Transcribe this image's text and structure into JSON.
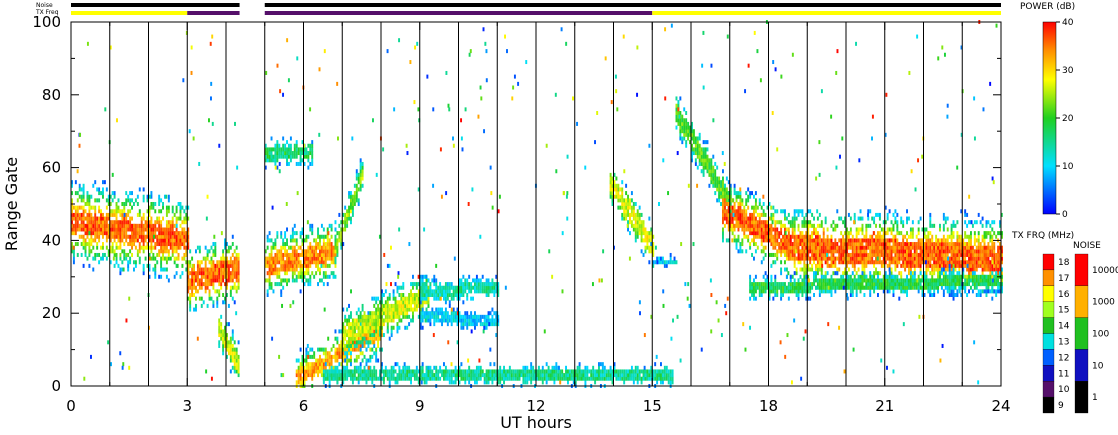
{
  "chart_data": {
    "type": "heatmap",
    "xlabel": "UT hours",
    "ylabel": "Range Gate",
    "xlim": [
      0,
      24
    ],
    "ylim": [
      0,
      100
    ],
    "x_ticks": [
      "0",
      "3",
      "6",
      "9",
      "12",
      "15",
      "18",
      "21",
      "24"
    ],
    "y_ticks": [
      "0",
      "20",
      "40",
      "60",
      "80",
      "100"
    ],
    "hour_gridlines": [
      1,
      2,
      3,
      4,
      5,
      6,
      7,
      8,
      9,
      10,
      11,
      12,
      13,
      14,
      15,
      16,
      17,
      18,
      19,
      20,
      21,
      22,
      23
    ],
    "top_bars": {
      "noise_label": "Noise",
      "txfreq_label": "TX Freq",
      "data_gap_hours": [
        4.35,
        5.0
      ],
      "txfreq_segments": [
        {
          "from": 0,
          "to": 3.0,
          "color": "#ffff00"
        },
        {
          "from": 3.0,
          "to": 4.35,
          "color": "#55106a"
        },
        {
          "from": 5.0,
          "to": 15.0,
          "color": "#55106a"
        },
        {
          "from": 15.0,
          "to": 24,
          "color": "#ffff00"
        }
      ]
    },
    "power_scale": {
      "title": "POWER (dB)",
      "ticks": [
        "0",
        "10",
        "20",
        "30",
        "40"
      ],
      "range": [
        0,
        40
      ]
    },
    "txfreq_scale": {
      "title": "TX FRQ (MHz)",
      "ticks": [
        "9",
        "10",
        "11",
        "12",
        "13",
        "14",
        "15",
        "16",
        "17",
        "18"
      ],
      "colors": [
        "#000000",
        "#55106a",
        "#1010c0",
        "#0060ff",
        "#00e0e0",
        "#20c020",
        "#a0ff20",
        "#ffff00",
        "#ff9000",
        "#ff0000"
      ]
    },
    "noise_scale": {
      "title": "NOISE",
      "ticks": [
        "1",
        "10",
        "100",
        "1000",
        "10000"
      ],
      "colors": [
        "#000000",
        "#1010c0",
        "#20c020",
        "#ffb000",
        "#ff0000"
      ]
    },
    "echo_bands": [
      {
        "t0": 0.0,
        "t1": 3.0,
        "g0": 45,
        "g1": 40,
        "width": 5,
        "power": 36,
        "halo": 13
      },
      {
        "t0": 3.0,
        "t1": 4.3,
        "g0": 29,
        "g1": 32,
        "width": 5,
        "power": 36,
        "halo": 10
      },
      {
        "t0": 3.8,
        "t1": 4.3,
        "g0": 16,
        "g1": 6,
        "width": 4,
        "power": 26,
        "halo": 6
      },
      {
        "t0": 5.0,
        "t1": 6.8,
        "g0": 33,
        "g1": 37,
        "width": 4,
        "power": 34,
        "halo": 10
      },
      {
        "t0": 6.8,
        "t1": 7.5,
        "g0": 38,
        "g1": 58,
        "width": 3,
        "power": 24,
        "halo": 6
      },
      {
        "t0": 5.0,
        "t1": 6.2,
        "g0": 64,
        "g1": 64,
        "width": 3,
        "power": 17,
        "halo": 4
      },
      {
        "t0": 5.8,
        "t1": 8.0,
        "g0": 2,
        "g1": 15,
        "width": 3,
        "power": 33,
        "halo": 8
      },
      {
        "t0": 7.0,
        "t1": 9.2,
        "g0": 14,
        "g1": 25,
        "width": 4,
        "power": 26,
        "halo": 8
      },
      {
        "t0": 9.0,
        "t1": 11.0,
        "g0": 26,
        "g1": 27,
        "width": 3,
        "power": 14,
        "halo": 4
      },
      {
        "t0": 9.0,
        "t1": 11.0,
        "g0": 19,
        "g1": 18,
        "width": 2,
        "power": 10,
        "halo": 3
      },
      {
        "t0": 6.5,
        "t1": 15.5,
        "g0": 3,
        "g1": 3,
        "width": 3,
        "power": 15,
        "halo": 3
      },
      {
        "t0": 13.9,
        "t1": 15.0,
        "g0": 56,
        "g1": 38,
        "width": 5,
        "power": 27,
        "halo": 6
      },
      {
        "t0": 15.0,
        "t1": 15.6,
        "g0": 34,
        "g1": 34,
        "width": 1,
        "power": 10,
        "halo": 2
      },
      {
        "t0": 15.6,
        "t1": 17.0,
        "g0": 75,
        "g1": 50,
        "width": 4,
        "power": 21,
        "halo": 6
      },
      {
        "t0": 16.8,
        "t1": 18.5,
        "g0": 48,
        "g1": 39,
        "width": 5,
        "power": 36,
        "halo": 10
      },
      {
        "t0": 18.5,
        "t1": 24.0,
        "g0": 38,
        "g1": 35,
        "width": 6,
        "power": 36,
        "halo": 12
      },
      {
        "t0": 17.5,
        "t1": 24.0,
        "g0": 27,
        "g1": 29,
        "width": 2,
        "power": 18,
        "halo": 4
      }
    ]
  }
}
